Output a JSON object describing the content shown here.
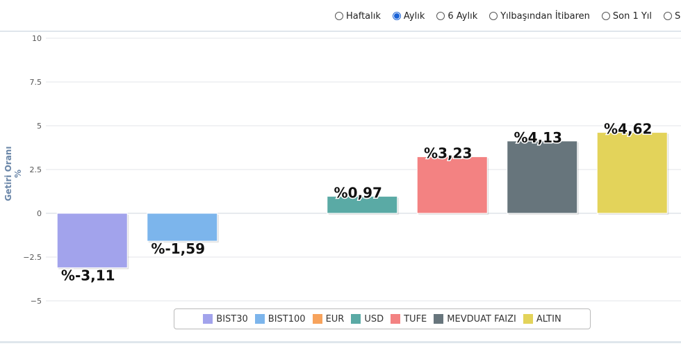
{
  "period_options": [
    {
      "label": "Haftalık",
      "checked": false
    },
    {
      "label": "Aylık",
      "checked": true
    },
    {
      "label": "6 Aylık",
      "checked": false
    },
    {
      "label": "Yılbaşından İtibaren",
      "checked": false
    },
    {
      "label": "Son 1 Yıl",
      "checked": false
    },
    {
      "label": "Son",
      "checked": false
    }
  ],
  "chart_data": {
    "type": "bar",
    "ylabel": "Getiri Oranı %",
    "ylim": [
      -5,
      10
    ],
    "yticks": [
      {
        "value": 10,
        "label": "10"
      },
      {
        "value": 7.5,
        "label": "7.5"
      },
      {
        "value": 5,
        "label": "5"
      },
      {
        "value": 2.5,
        "label": "2.5"
      },
      {
        "value": 0,
        "label": "0"
      },
      {
        "value": -2.5,
        "label": "−2.5"
      },
      {
        "value": -5,
        "label": "−5"
      }
    ],
    "grid": true,
    "legend_position": "bottom",
    "series": [
      {
        "name": "BIST30",
        "value": -3.11,
        "label": "%-3,11",
        "color": "#a2a3ec"
      },
      {
        "name": "BIST100",
        "value": -1.59,
        "label": "%-1,59",
        "color": "#7cb5ec"
      },
      {
        "name": "EUR",
        "value": null,
        "label": "",
        "color": "#f7a35c"
      },
      {
        "name": "USD",
        "value": 0.97,
        "label": "%0,97",
        "color": "#5aaaa5"
      },
      {
        "name": "TUFE",
        "value": 3.23,
        "label": "%3,23",
        "color": "#f38282"
      },
      {
        "name": "MEVDUAT FAIZI",
        "value": 4.13,
        "label": "%4,13",
        "color": "#67757c"
      },
      {
        "name": "ALTIN",
        "value": 4.62,
        "label": "%4,62",
        "color": "#e3d35a"
      }
    ]
  }
}
